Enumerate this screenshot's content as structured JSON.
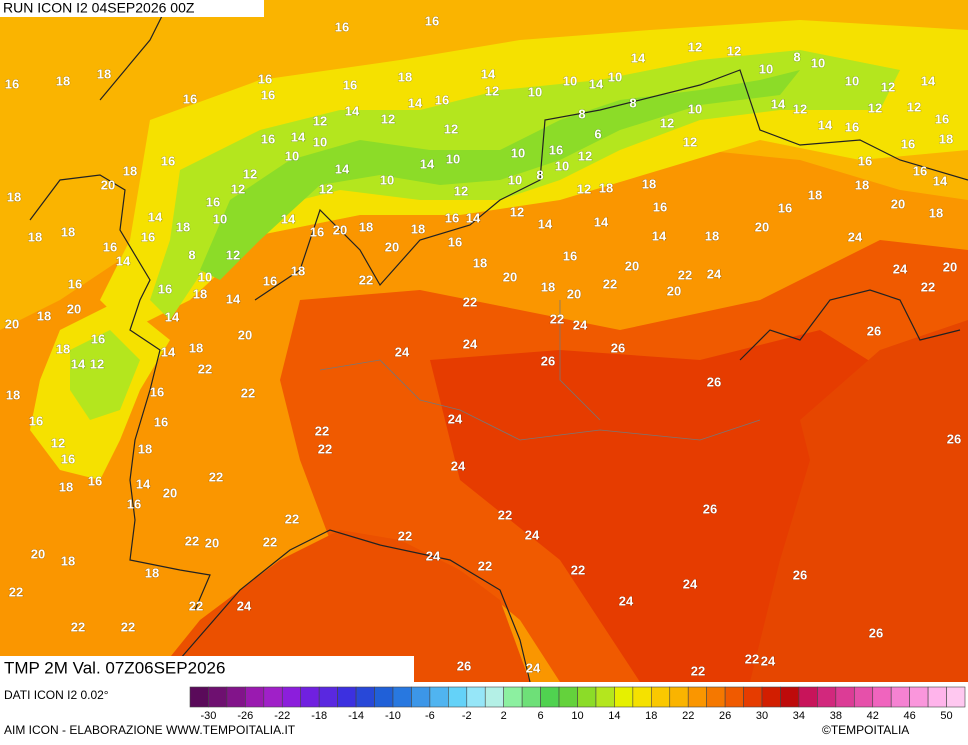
{
  "header": {
    "run": "RUN ICON I2 04SEP2026 00Z",
    "validity": "TMP 2M Val. 07Z06SEP2026"
  },
  "footer": {
    "source": "DATI ICON I2 0.02°",
    "credits": "AIM ICON - ELABORAZIONE WWW.TEMPOITALIA.IT",
    "copyright": "©TEMPOITALIA"
  },
  "colorbar": {
    "range": [
      -32,
      52
    ],
    "ticks": [
      -30,
      -26,
      -22,
      -18,
      -14,
      -10,
      -6,
      -2,
      2,
      6,
      10,
      14,
      18,
      22,
      26,
      30,
      34,
      38,
      42,
      46,
      50
    ],
    "colors": [
      "#5a0a5a",
      "#6e1070",
      "#82148a",
      "#9a1ab0",
      "#a020c8",
      "#8c1edc",
      "#7020e0",
      "#5a28e0",
      "#3c30e0",
      "#2848d8",
      "#2060d8",
      "#2878e0",
      "#3c96e8",
      "#50b4f0",
      "#64d2f8",
      "#96e6f8",
      "#b4f0e6",
      "#8cf0a0",
      "#6ee078",
      "#50d250",
      "#64d23c",
      "#8cdc28",
      "#b4e61e",
      "#e6f000",
      "#f5e100",
      "#fac800",
      "#fab400",
      "#fa9600",
      "#f57800",
      "#f05a00",
      "#e63c00",
      "#d21e00",
      "#be0a0a",
      "#c8145a",
      "#d2287d",
      "#dc3c96",
      "#e650aa",
      "#f064be",
      "#f582d2",
      "#fa96dc",
      "#ffb4eb",
      "#ffc8f0"
    ]
  },
  "labels": [
    16,
    16,
    16,
    18,
    18,
    16,
    16,
    16,
    16,
    18,
    14,
    12,
    12,
    14,
    16,
    14,
    12,
    10,
    10,
    14,
    10,
    14,
    12,
    12,
    10,
    8,
    10,
    10,
    12,
    14,
    16,
    18,
    14,
    18,
    20,
    18,
    18,
    16,
    20,
    18,
    14,
    20,
    22,
    24,
    20,
    22,
    20,
    18,
    22,
    24,
    26,
    26,
    24,
    24,
    22,
    20,
    18,
    16,
    18,
    20,
    18,
    22,
    18,
    16,
    20,
    22,
    22,
    22,
    22,
    24,
    24,
    22,
    20,
    22,
    22,
    22,
    24,
    22,
    22,
    24,
    22,
    24,
    24,
    26,
    26,
    26,
    24,
    24,
    20,
    22,
    26,
    26,
    26,
    22,
    24,
    22,
    24,
    26,
    24,
    22,
    22,
    22,
    22,
    20,
    18,
    18,
    22,
    20,
    16,
    14,
    16,
    18,
    16,
    12,
    16,
    18,
    16,
    16,
    18,
    20,
    18,
    20,
    18,
    16,
    14,
    12,
    18,
    18,
    18,
    20,
    18,
    16,
    14,
    18,
    16,
    16,
    14,
    16,
    16,
    18,
    14,
    14,
    18,
    14,
    8,
    10,
    12,
    10,
    16,
    12,
    12,
    16,
    10,
    14,
    10,
    14,
    12,
    14,
    16,
    20,
    10,
    14,
    10,
    12,
    12,
    16,
    14,
    12,
    10,
    10,
    8,
    16,
    10,
    12,
    12,
    18,
    14,
    16,
    14,
    18,
    16,
    12,
    12,
    8,
    10,
    14,
    12,
    14,
    16,
    16,
    16,
    16,
    12,
    12,
    8,
    6
  ]
}
